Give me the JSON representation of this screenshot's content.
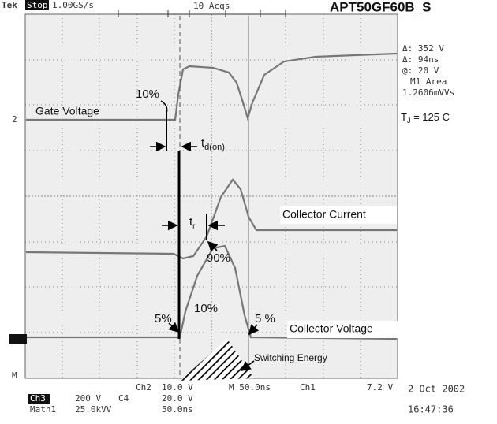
{
  "header": {
    "brand": "Tek",
    "state": "Stop",
    "rate": "1.00GS/s",
    "acqs": "10 Acqs",
    "part": "APT50GF60B_S"
  },
  "readout": [
    "Δ: 352 V",
    "Δ: 94ns",
    "@: 20 V",
    "M1 Area",
    "1.2606mVVs"
  ],
  "tj": {
    "main": "T",
    "sub": "J",
    "rest": " = 125  C"
  },
  "annotations": {
    "gate_pct": "10%",
    "gate_voltage": "Gate Voltage",
    "td_on": {
      "main": "t",
      "sub": "d(on)"
    },
    "tr": {
      "main": "t",
      "sub": "r"
    },
    "collector_current": "Collector Current",
    "pct90": "90%",
    "pct10": "10%",
    "pct5_left": "5%",
    "pct5_right": "5 %",
    "collector_voltage": "Collector Voltage",
    "switching_energy": "Switching Energy"
  },
  "markers": {
    "ch2": "2",
    "math": "M"
  },
  "footer": {
    "ch2_label": "Ch2",
    "ch2_scale": "10.0 V",
    "timebase": "M 50.0ns",
    "trigger_src": "Ch1",
    "trigger_level": "7.2 V",
    "date": "2 Oct 2002",
    "time": "16:47:36",
    "ch3": "Ch3",
    "ch3_scale": "200 V",
    "c4": "C4",
    "c4_scale": "20.0 V",
    "math": "Math1",
    "math_scale": "25.0kVV",
    "math_time": "50.0ns"
  }
}
